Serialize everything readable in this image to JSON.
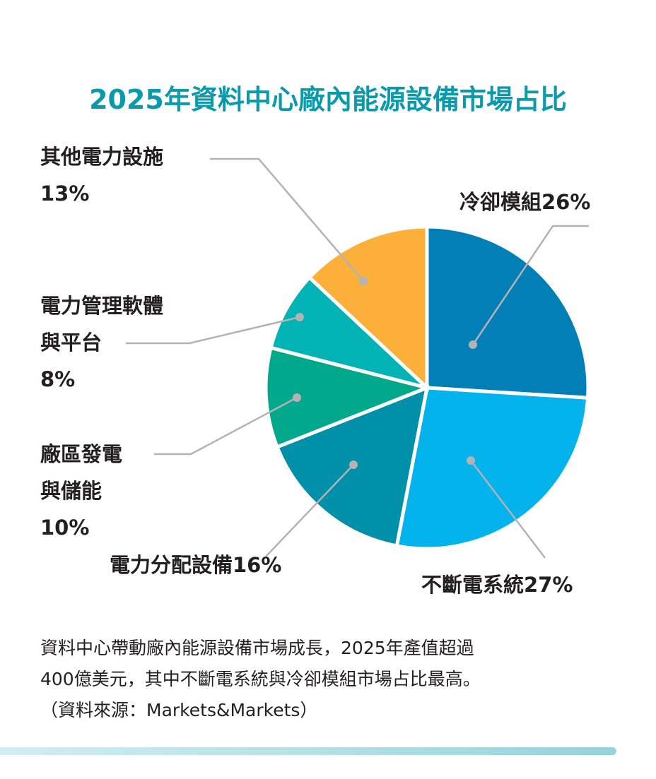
{
  "chart_data": {
    "type": "pie",
    "title": "2025年資料中心廠內能源設備市場占比",
    "slices": [
      {
        "label": "冷卻模組",
        "value": 26,
        "text": "冷卻模組26%",
        "color": "#027fb7"
      },
      {
        "label": "不斷電系統",
        "value": 27,
        "text": "不斷電系統27%",
        "color": "#04b2ec"
      },
      {
        "label": "電力分配設備",
        "value": 16,
        "text": "電力分配設備16%",
        "color": "#0090a9"
      },
      {
        "label": "廠區發電與儲能",
        "value": 10,
        "lines": [
          "廠區發電",
          "與儲能",
          "10%"
        ],
        "color": "#02a88b"
      },
      {
        "label": "電力管理軟體與平台",
        "value": 8,
        "lines": [
          "電力管理軟體",
          "與平台",
          "8%"
        ],
        "color": "#01b3b5"
      },
      {
        "label": "其他電力設施",
        "value": 13,
        "lines": [
          "其他電力設施",
          "13%"
        ],
        "color": "#fcb03a"
      }
    ]
  },
  "note": {
    "line1": "資料中心帶動廠內能源設備市場成長，2025年產值超過",
    "line2": "400億美元，其中不斷電系統與冷卻模組市場占比最高。",
    "line3": "（資料來源：Markets&Markets）"
  }
}
